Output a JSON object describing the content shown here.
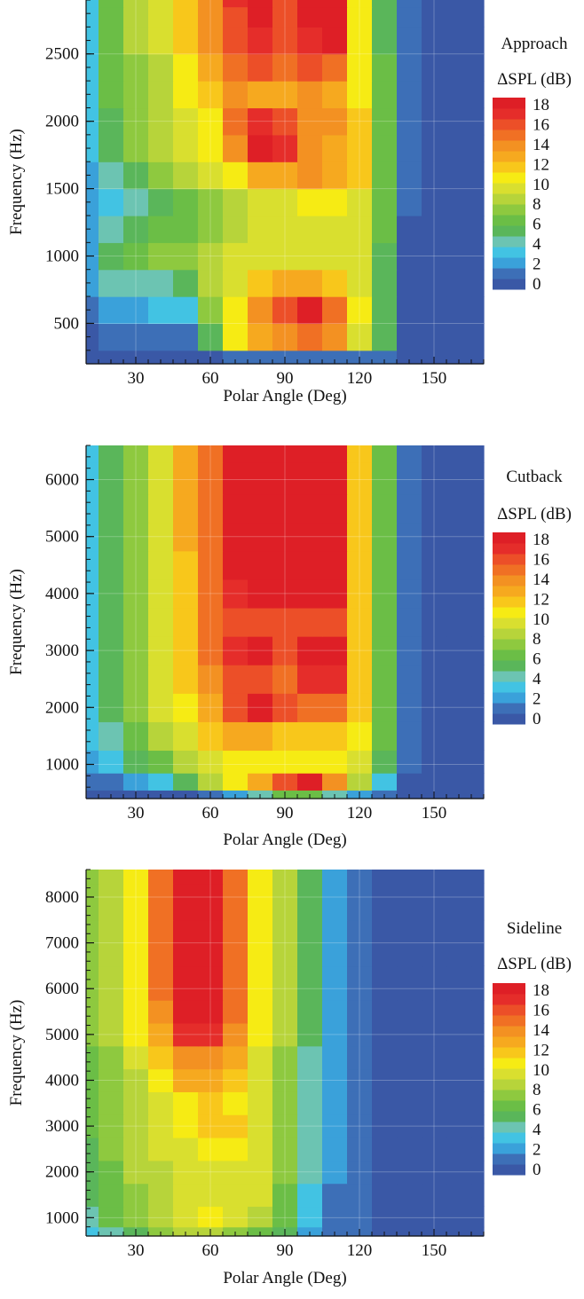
{
  "palette": {
    "levels": [
      0,
      2,
      4,
      6,
      8,
      10,
      12,
      14,
      16,
      18
    ],
    "colors": [
      "#3a58a6",
      "#3d6fb7",
      "#3aa1da",
      "#42c3e3",
      "#6cc4b2",
      "#5ab65a",
      "#6bbe46",
      "#8ec93f",
      "#b7d43a",
      "#d9df2f",
      "#f6eb14",
      "#f8c71b",
      "#f6a91f",
      "#f39122",
      "#f07024",
      "#ec4f28",
      "#e52d2a",
      "#de1f26"
    ]
  },
  "chart_data": [
    {
      "type": "heatmap",
      "title": "Approach",
      "colorbar_label": "ΔSPL (dB)",
      "colorbar_ticks": [
        "18",
        "16",
        "14",
        "12",
        "10",
        "8",
        "6",
        "4",
        "2",
        "0"
      ],
      "xlabel": "Polar Angle (Deg)",
      "ylabel": "Frequency (Hz)",
      "xlim": [
        10,
        170
      ],
      "ylim": [
        200,
        2900
      ],
      "xticks": [
        "30",
        "60",
        "90",
        "120",
        "150"
      ],
      "yticks": [
        "500",
        "1000",
        "1500",
        "2000",
        "2500"
      ],
      "x": [
        10,
        20,
        30,
        40,
        50,
        60,
        70,
        80,
        90,
        100,
        110,
        120,
        130,
        140,
        150,
        160,
        170
      ],
      "y": [
        200,
        400,
        600,
        800,
        1000,
        1200,
        1400,
        1600,
        1800,
        2000,
        2200,
        2400,
        2600,
        2800,
        2900
      ],
      "values": [
        [
          0,
          0,
          0,
          0,
          0,
          0,
          1,
          1,
          1,
          1,
          1,
          1,
          1,
          0,
          0,
          0,
          0
        ],
        [
          0,
          1,
          1,
          1,
          1,
          5,
          10,
          12,
          13,
          14,
          13,
          9,
          5,
          0,
          0,
          0,
          0
        ],
        [
          1,
          2,
          2,
          3,
          3,
          7,
          10,
          13,
          15,
          17,
          14,
          10,
          5,
          0,
          0,
          0,
          0
        ],
        [
          2,
          4,
          4,
          4,
          5,
          8,
          9,
          11,
          12,
          12,
          11,
          9,
          5,
          0,
          0,
          0,
          0
        ],
        [
          2,
          5,
          6,
          7,
          7,
          8,
          9,
          9,
          9,
          9,
          9,
          9,
          5,
          0,
          0,
          0,
          0
        ],
        [
          2,
          4,
          5,
          6,
          6,
          7,
          8,
          9,
          9,
          9,
          9,
          9,
          6,
          0,
          0,
          0,
          0
        ],
        [
          2,
          3,
          4,
          5,
          6,
          7,
          8,
          9,
          9,
          10,
          10,
          9,
          6,
          1,
          0,
          0,
          0
        ],
        [
          2,
          4,
          5,
          7,
          8,
          9,
          10,
          12,
          12,
          13,
          12,
          11,
          6,
          1,
          0,
          0,
          0
        ],
        [
          3,
          5,
          7,
          8,
          9,
          10,
          13,
          17,
          16,
          13,
          12,
          11,
          6,
          1,
          0,
          0,
          0
        ],
        [
          3,
          5,
          7,
          8,
          9,
          10,
          14,
          16,
          15,
          13,
          13,
          11,
          6,
          1,
          0,
          0,
          0
        ],
        [
          3,
          6,
          7,
          8,
          10,
          11,
          13,
          12,
          12,
          13,
          12,
          10,
          6,
          1,
          0,
          0,
          0
        ],
        [
          3,
          6,
          7,
          8,
          10,
          12,
          14,
          15,
          14,
          15,
          14,
          10,
          6,
          1,
          0,
          0,
          0
        ],
        [
          3,
          6,
          8,
          9,
          11,
          13,
          15,
          16,
          15,
          16,
          17,
          10,
          5,
          1,
          0,
          0,
          0
        ],
        [
          3,
          6,
          8,
          9,
          11,
          13,
          15,
          17,
          15,
          17,
          18,
          10,
          5,
          1,
          0,
          0,
          0
        ],
        [
          3,
          6,
          8,
          9,
          11,
          13,
          16,
          17,
          15,
          17,
          18,
          10,
          5,
          1,
          0,
          0,
          0
        ]
      ]
    },
    {
      "type": "heatmap",
      "title": "Cutback",
      "colorbar_label": "ΔSPL (dB)",
      "colorbar_ticks": [
        "18",
        "16",
        "14",
        "12",
        "10",
        "8",
        "6",
        "4",
        "2",
        "0"
      ],
      "xlabel": "Polar Angle (Deg)",
      "ylabel": "Frequency (Hz)",
      "xlim": [
        10,
        170
      ],
      "ylim": [
        400,
        6600
      ],
      "xticks": [
        "30",
        "60",
        "90",
        "120",
        "150"
      ],
      "yticks": [
        "1000",
        "2000",
        "3000",
        "4000",
        "5000",
        "6000"
      ],
      "x": [
        10,
        20,
        30,
        40,
        50,
        60,
        70,
        80,
        90,
        100,
        110,
        120,
        130,
        140,
        150,
        160,
        170
      ],
      "y": [
        400,
        700,
        1000,
        1500,
        2000,
        2500,
        3000,
        3500,
        4000,
        4500,
        5000,
        5500,
        6000,
        6600
      ],
      "values": [
        [
          0,
          0,
          0,
          0,
          0,
          1,
          2,
          4,
          6,
          6,
          4,
          2,
          1,
          0,
          0,
          0,
          0
        ],
        [
          1,
          1,
          2,
          3,
          5,
          8,
          10,
          12,
          15,
          18,
          13,
          8,
          3,
          0,
          0,
          0,
          0
        ],
        [
          2,
          3,
          5,
          6,
          8,
          9,
          10,
          10,
          10,
          10,
          10,
          9,
          5,
          1,
          0,
          0,
          0
        ],
        [
          3,
          4,
          6,
          8,
          9,
          11,
          12,
          12,
          11,
          11,
          11,
          10,
          6,
          1,
          0,
          0,
          0
        ],
        [
          3,
          5,
          7,
          9,
          10,
          12,
          15,
          18,
          15,
          14,
          14,
          11,
          6,
          1,
          0,
          0,
          0
        ],
        [
          3,
          5,
          7,
          9,
          11,
          13,
          15,
          15,
          14,
          16,
          16,
          11,
          6,
          1,
          0,
          0,
          0
        ],
        [
          3,
          5,
          7,
          9,
          11,
          14,
          16,
          17,
          15,
          17,
          18,
          11,
          6,
          1,
          0,
          0,
          0
        ],
        [
          3,
          5,
          7,
          9,
          11,
          14,
          15,
          15,
          15,
          15,
          15,
          11,
          6,
          1,
          0,
          0,
          0
        ],
        [
          3,
          5,
          7,
          9,
          11,
          14,
          16,
          17,
          17,
          17,
          17,
          11,
          6,
          1,
          0,
          0,
          0
        ],
        [
          3,
          5,
          7,
          9,
          11,
          14,
          17,
          18,
          18,
          18,
          18,
          11,
          6,
          1,
          0,
          0,
          0
        ],
        [
          3,
          5,
          7,
          9,
          12,
          14,
          17,
          18,
          18,
          18,
          18,
          11,
          6,
          1,
          0,
          0,
          0
        ],
        [
          3,
          5,
          7,
          9,
          12,
          14,
          17,
          18,
          18,
          18,
          18,
          11,
          6,
          1,
          0,
          0,
          0
        ],
        [
          3,
          5,
          7,
          9,
          12,
          14,
          17,
          18,
          18,
          18,
          18,
          11,
          6,
          1,
          0,
          0,
          0
        ],
        [
          3,
          5,
          7,
          9,
          12,
          14,
          17,
          18,
          18,
          18,
          18,
          11,
          6,
          1,
          0,
          0,
          0
        ]
      ]
    },
    {
      "type": "heatmap",
      "title": "Sideline",
      "colorbar_label": "ΔSPL (dB)",
      "colorbar_ticks": [
        "18",
        "16",
        "14",
        "12",
        "10",
        "8",
        "6",
        "4",
        "2",
        "0"
      ],
      "xlabel": "Polar Angle (Deg)",
      "ylabel": "Frequency (Hz)",
      "xlim": [
        10,
        170
      ],
      "ylim": [
        600,
        8600
      ],
      "xticks": [
        "30",
        "60",
        "90",
        "120",
        "150"
      ],
      "yticks": [
        "1000",
        "2000",
        "3000",
        "4000",
        "5000",
        "6000",
        "7000",
        "8000"
      ],
      "x": [
        10,
        20,
        30,
        40,
        50,
        60,
        70,
        80,
        90,
        100,
        110,
        120,
        130,
        140,
        150,
        160,
        170
      ],
      "y": [
        600,
        1000,
        1500,
        2000,
        2500,
        3000,
        3500,
        4000,
        4500,
        5000,
        5500,
        6000,
        7000,
        8000,
        8600
      ],
      "values": [
        [
          3,
          4,
          5,
          7,
          8,
          8,
          7,
          6,
          5,
          2,
          1,
          1,
          0,
          0,
          0,
          0,
          0
        ],
        [
          4,
          6,
          7,
          8,
          9,
          10,
          9,
          8,
          6,
          3,
          1,
          1,
          0,
          0,
          0,
          0,
          0
        ],
        [
          5,
          6,
          7,
          8,
          9,
          9,
          9,
          9,
          6,
          3,
          1,
          1,
          0,
          0,
          0,
          0,
          0
        ],
        [
          5,
          6,
          8,
          8,
          9,
          9,
          9,
          9,
          7,
          4,
          2,
          1,
          0,
          0,
          0,
          0,
          0
        ],
        [
          5,
          7,
          8,
          9,
          9,
          10,
          10,
          9,
          7,
          4,
          2,
          1,
          0,
          0,
          0,
          0,
          0
        ],
        [
          6,
          7,
          8,
          9,
          10,
          11,
          11,
          9,
          7,
          4,
          2,
          1,
          0,
          0,
          0,
          0,
          0
        ],
        [
          6,
          7,
          8,
          9,
          10,
          11,
          10,
          9,
          7,
          4,
          2,
          1,
          0,
          0,
          0,
          0,
          0
        ],
        [
          6,
          7,
          8,
          10,
          12,
          12,
          11,
          9,
          7,
          4,
          2,
          1,
          0,
          0,
          0,
          0,
          0
        ],
        [
          6,
          7,
          9,
          11,
          13,
          13,
          12,
          9,
          7,
          4,
          2,
          1,
          0,
          0,
          0,
          0,
          0
        ],
        [
          7,
          8,
          10,
          12,
          16,
          16,
          13,
          10,
          8,
          5,
          2,
          1,
          0,
          0,
          0,
          0,
          0
        ],
        [
          7,
          8,
          10,
          13,
          18,
          18,
          14,
          10,
          8,
          5,
          2,
          1,
          0,
          0,
          0,
          0,
          0
        ],
        [
          7,
          8,
          10,
          14,
          18,
          18,
          14,
          10,
          8,
          5,
          2,
          1,
          0,
          0,
          0,
          0,
          0
        ],
        [
          7,
          8,
          10,
          14,
          18,
          18,
          14,
          10,
          8,
          5,
          2,
          1,
          0,
          0,
          0,
          0,
          0
        ],
        [
          7,
          8,
          10,
          14,
          18,
          18,
          14,
          10,
          8,
          5,
          2,
          1,
          0,
          0,
          0,
          0,
          0
        ],
        [
          7,
          8,
          10,
          14,
          18,
          18,
          14,
          10,
          8,
          5,
          2,
          1,
          0,
          0,
          0,
          0,
          0
        ]
      ]
    }
  ]
}
